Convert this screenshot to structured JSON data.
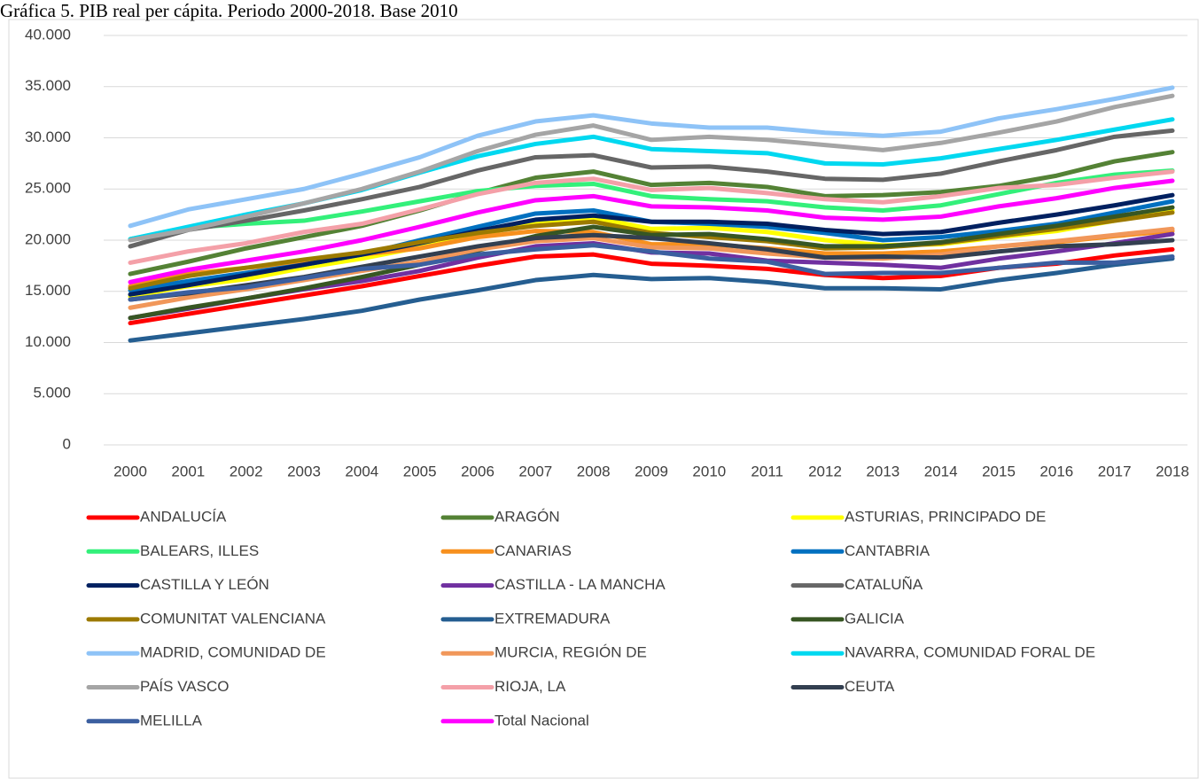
{
  "chart_data": {
    "type": "line",
    "title": "Gráfica 5. PIB real per cápita. Periodo 2000-2018. Base 2010",
    "x": [
      "2000",
      "2001",
      "2002",
      "2003",
      "2004",
      "2005",
      "2006",
      "2007",
      "2008",
      "2009",
      "2010",
      "2011",
      "2012",
      "2013",
      "2014",
      "2015",
      "2016",
      "2017",
      "2018"
    ],
    "ylim": [
      0,
      40000
    ],
    "yticks": [
      0,
      {
        "value": 5000,
        "label": "5.000"
      },
      {
        "value": 10000,
        "label": "10.000"
      },
      {
        "value": 15000,
        "label": "15.000"
      },
      {
        "value": 20000,
        "label": "20.000"
      },
      {
        "value": 25000,
        "label": "25.000"
      },
      {
        "value": 30000,
        "label": "30.000"
      },
      {
        "value": 35000,
        "label": "35.000"
      },
      {
        "value": 40000,
        "label": "40.000"
      }
    ],
    "grid": true,
    "legend": "bottom",
    "series": [
      {
        "name": "ANDALUCÍA",
        "color": "#ff0000",
        "values": [
          11900,
          12800,
          13700,
          14600,
          15500,
          16500,
          17500,
          18400,
          18600,
          17700,
          17500,
          17200,
          16600,
          16300,
          16500,
          17300,
          17700,
          18500,
          19100
        ]
      },
      {
        "name": "ARAGÓN",
        "color": "#548235",
        "values": [
          16700,
          17900,
          19200,
          20300,
          21400,
          22900,
          24600,
          26100,
          26700,
          25400,
          25600,
          25200,
          24300,
          24400,
          24700,
          25300,
          26300,
          27700,
          28600
        ]
      },
      {
        "name": "ASTURIAS, PRINCIPADO DE",
        "color": "#ffff00",
        "values": [
          14500,
          15500,
          16200,
          17300,
          18200,
          19300,
          20500,
          21700,
          22200,
          21100,
          21200,
          20800,
          20000,
          19500,
          19600,
          20300,
          20900,
          21900,
          22900
        ]
      },
      {
        "name": "BALEARS, ILLES",
        "color": "#33f07a",
        "values": [
          20100,
          21200,
          21600,
          21900,
          22800,
          23800,
          24800,
          25300,
          25500,
          24300,
          24000,
          23800,
          23200,
          22900,
          23400,
          24500,
          25600,
          26400,
          26800
        ]
      },
      {
        "name": "CANARIAS",
        "color": "#f7901e",
        "values": [
          15500,
          16700,
          17300,
          17800,
          18600,
          19200,
          20300,
          20900,
          20800,
          19600,
          19600,
          19200,
          18700,
          18700,
          18900,
          19400,
          19800,
          20400,
          20900
        ]
      },
      {
        "name": "CANTABRIA",
        "color": "#0070c0",
        "values": [
          15100,
          16000,
          16800,
          17600,
          18600,
          20000,
          21300,
          22600,
          22900,
          21800,
          21600,
          21300,
          20700,
          20000,
          20300,
          20900,
          21600,
          22700,
          23800
        ]
      },
      {
        "name": "CASTILLA Y LEÓN",
        "color": "#002060",
        "values": [
          14700,
          15600,
          16600,
          17600,
          18600,
          19700,
          20900,
          22000,
          22400,
          21800,
          21800,
          21600,
          21000,
          20600,
          20800,
          21700,
          22500,
          23400,
          24400
        ]
      },
      {
        "name": "CASTILLA - LA MANCHA",
        "color": "#7030a0",
        "values": [
          12400,
          13300,
          14300,
          15200,
          16000,
          17000,
          18300,
          19400,
          19700,
          18800,
          18700,
          18000,
          17800,
          17600,
          17300,
          18200,
          18900,
          19700,
          20600
        ]
      },
      {
        "name": "CATALUÑA",
        "color": "#666666",
        "values": [
          19400,
          21000,
          21900,
          22900,
          24000,
          25200,
          26800,
          28100,
          28300,
          27100,
          27200,
          26700,
          26000,
          25900,
          26500,
          27700,
          28800,
          30100,
          30700
        ]
      },
      {
        "name": "COMUNITAT VALENCIANA",
        "color": "#9c7a00",
        "values": [
          15300,
          16500,
          17300,
          18100,
          18800,
          19800,
          20700,
          21400,
          21800,
          20700,
          20300,
          19900,
          19200,
          19300,
          19700,
          20400,
          21100,
          21900,
          22700
        ]
      },
      {
        "name": "EXTREMADURA",
        "color": "#255e91",
        "values": [
          10200,
          10900,
          11600,
          12300,
          13100,
          14200,
          15100,
          16100,
          16600,
          16200,
          16300,
          15900,
          15300,
          15300,
          15200,
          16100,
          16800,
          17600,
          18200
        ]
      },
      {
        "name": "GALICIA",
        "color": "#375623",
        "values": [
          12400,
          13400,
          14300,
          15300,
          16400,
          17600,
          19000,
          20400,
          21300,
          20500,
          20600,
          20100,
          19400,
          19400,
          19800,
          20600,
          21400,
          22300,
          23200
        ]
      },
      {
        "name": "MADRID, COMUNIDAD DE",
        "color": "#8ec3f7",
        "values": [
          21400,
          23000,
          24000,
          25000,
          26500,
          28100,
          30200,
          31600,
          32200,
          31400,
          31000,
          31000,
          30500,
          30200,
          30600,
          31900,
          32800,
          33800,
          34900
        ]
      },
      {
        "name": "MURCIA, REGIÓN DE",
        "color": "#f1975a",
        "values": [
          13400,
          14400,
          15200,
          16100,
          17000,
          17900,
          19100,
          19900,
          20200,
          19300,
          19200,
          18700,
          18300,
          18200,
          18600,
          19400,
          19900,
          20500,
          21100
        ]
      },
      {
        "name": "NAVARRA, COMUNIDAD FORAL DE",
        "color": "#00d8f0",
        "values": [
          20100,
          21300,
          22500,
          23600,
          24900,
          26600,
          28200,
          29400,
          30100,
          28900,
          28700,
          28500,
          27500,
          27400,
          28000,
          28900,
          29800,
          30800,
          31800
        ]
      },
      {
        "name": "PAÍS VASCO",
        "color": "#a5a5a5",
        "values": [
          20000,
          21000,
          22300,
          23600,
          25000,
          26700,
          28700,
          30300,
          31200,
          29800,
          30100,
          29800,
          29300,
          28800,
          29500,
          30500,
          31600,
          33000,
          34100
        ]
      },
      {
        "name": "RIOJA, LA",
        "color": "#f4a0a8",
        "values": [
          17800,
          18900,
          19700,
          20800,
          21600,
          23000,
          24500,
          25600,
          26000,
          24900,
          25100,
          24600,
          24000,
          23700,
          24300,
          25100,
          25400,
          26100,
          26700
        ]
      },
      {
        "name": "CEUTA",
        "color": "#333f50",
        "values": [
          14200,
          14800,
          15600,
          16400,
          17400,
          18400,
          19400,
          20200,
          20500,
          20200,
          19700,
          19100,
          18300,
          18400,
          18300,
          18900,
          19400,
          19600,
          20000
        ]
      },
      {
        "name": "MELILLA",
        "color": "#3b5fa0",
        "values": [
          14200,
          14900,
          15400,
          16300,
          17200,
          17600,
          18600,
          19100,
          19500,
          18900,
          18200,
          17900,
          16700,
          16800,
          16800,
          17300,
          17800,
          17800,
          18400
        ]
      },
      {
        "name": "Total Nacional",
        "color": "#ff00ff",
        "values": [
          15900,
          17100,
          18000,
          18900,
          20000,
          21300,
          22700,
          23900,
          24300,
          23300,
          23200,
          22900,
          22200,
          22000,
          22300,
          23300,
          24100,
          25100,
          25800
        ]
      }
    ]
  }
}
